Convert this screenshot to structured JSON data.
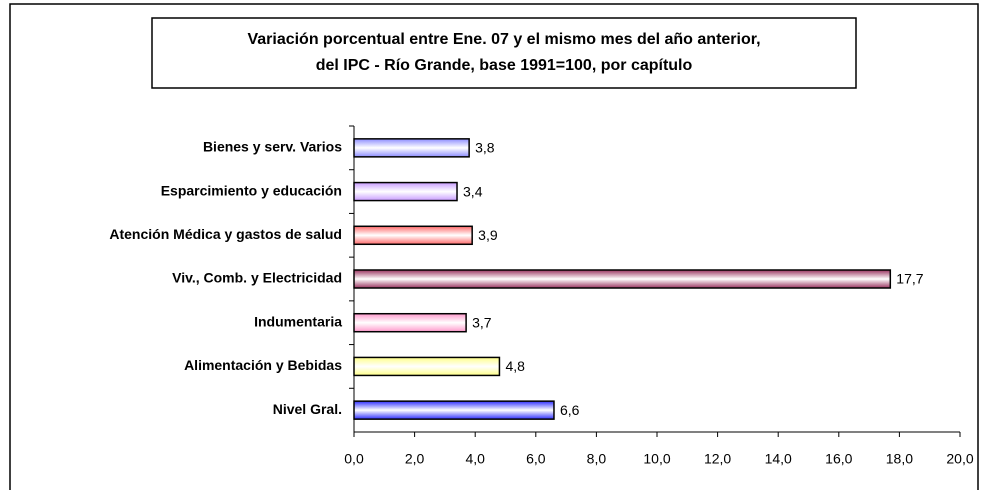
{
  "chart_data": {
    "type": "bar",
    "orientation": "horizontal",
    "title": [
      "Variación porcentual entre Ene. 07 y el mismo  mes del año anterior,",
      "del IPC - Río Grande, base 1991=100, por capítulo"
    ],
    "categories": [
      "Bienes y serv. Varios",
      "Esparcimiento y educación",
      "Atención Médica y gastos de salud",
      "Viv., Comb. y Electricidad",
      "Indumentaria",
      "Alimentación y Bebidas",
      "Nivel Gral."
    ],
    "values": [
      3.8,
      3.4,
      3.9,
      17.7,
      3.7,
      4.8,
      6.6
    ],
    "value_labels": [
      "3,8",
      "3,4",
      "3,9",
      "17,7",
      "3,7",
      "4,8",
      "6,6"
    ],
    "colors": [
      "#8c8cff",
      "#c89cff",
      "#ff6a6a",
      "#99335f",
      "#ff99cc",
      "#ffff88",
      "#2f2fff"
    ],
    "xlim": [
      0,
      20
    ],
    "xticks": [
      {
        "value": 0,
        "label": "0,0"
      },
      {
        "value": 2,
        "label": "2,0"
      },
      {
        "value": 4,
        "label": "4,0"
      },
      {
        "value": 6,
        "label": "6,0"
      },
      {
        "value": 8,
        "label": "8,0"
      },
      {
        "value": 10,
        "label": "10,0"
      },
      {
        "value": 12,
        "label": "12,0"
      },
      {
        "value": 14,
        "label": "14,0"
      },
      {
        "value": 16,
        "label": "16,0"
      },
      {
        "value": 18,
        "label": "18,0"
      },
      {
        "value": 20,
        "label": "20,0"
      }
    ],
    "grid": false
  }
}
